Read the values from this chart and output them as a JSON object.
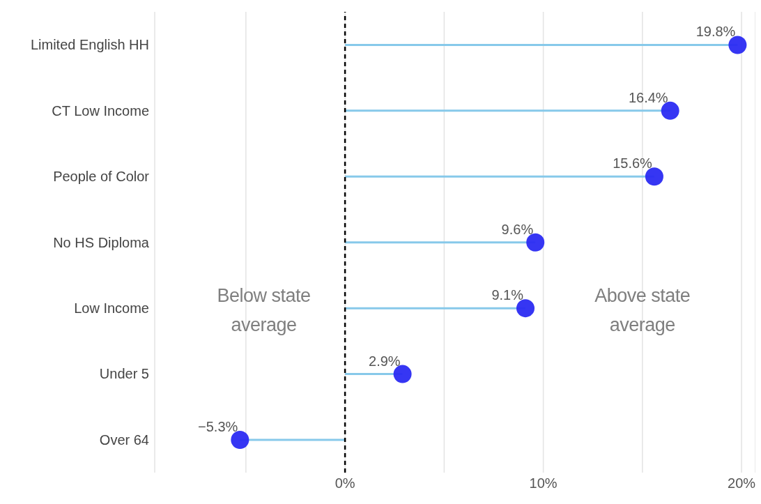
{
  "chart_data": {
    "type": "lollipop",
    "orientation": "horizontal",
    "categories": [
      "Limited English HH",
      "CT Low Income",
      "People of Color",
      "No HS Diploma",
      "Low Income",
      "Under 5",
      "Over 64"
    ],
    "values": [
      19.8,
      16.4,
      15.6,
      9.6,
      9.1,
      2.9,
      -5.3
    ],
    "value_labels": [
      "19.8%",
      "16.4%",
      "15.6%",
      "9.6%",
      "9.1%",
      "2.9%",
      "−5.3%"
    ],
    "color": "#2b2bf2",
    "marker": "circle",
    "xlim": [
      -9.6,
      20.7
    ],
    "xticks": [
      {
        "value": -5,
        "label": null
      },
      {
        "value": 0,
        "label": "0%"
      },
      {
        "value": 5,
        "label": null
      },
      {
        "value": 10,
        "label": "10%"
      },
      {
        "value": 15,
        "label": null
      },
      {
        "value": 20,
        "label": "20%"
      }
    ],
    "grid": "x",
    "legend": false,
    "ref_lines": [
      {
        "axis": "x",
        "value": 0,
        "label": null,
        "color": "#000000",
        "line_style": "dashed"
      }
    ],
    "annotations": [
      "Below state average",
      "Above state average"
    ]
  }
}
